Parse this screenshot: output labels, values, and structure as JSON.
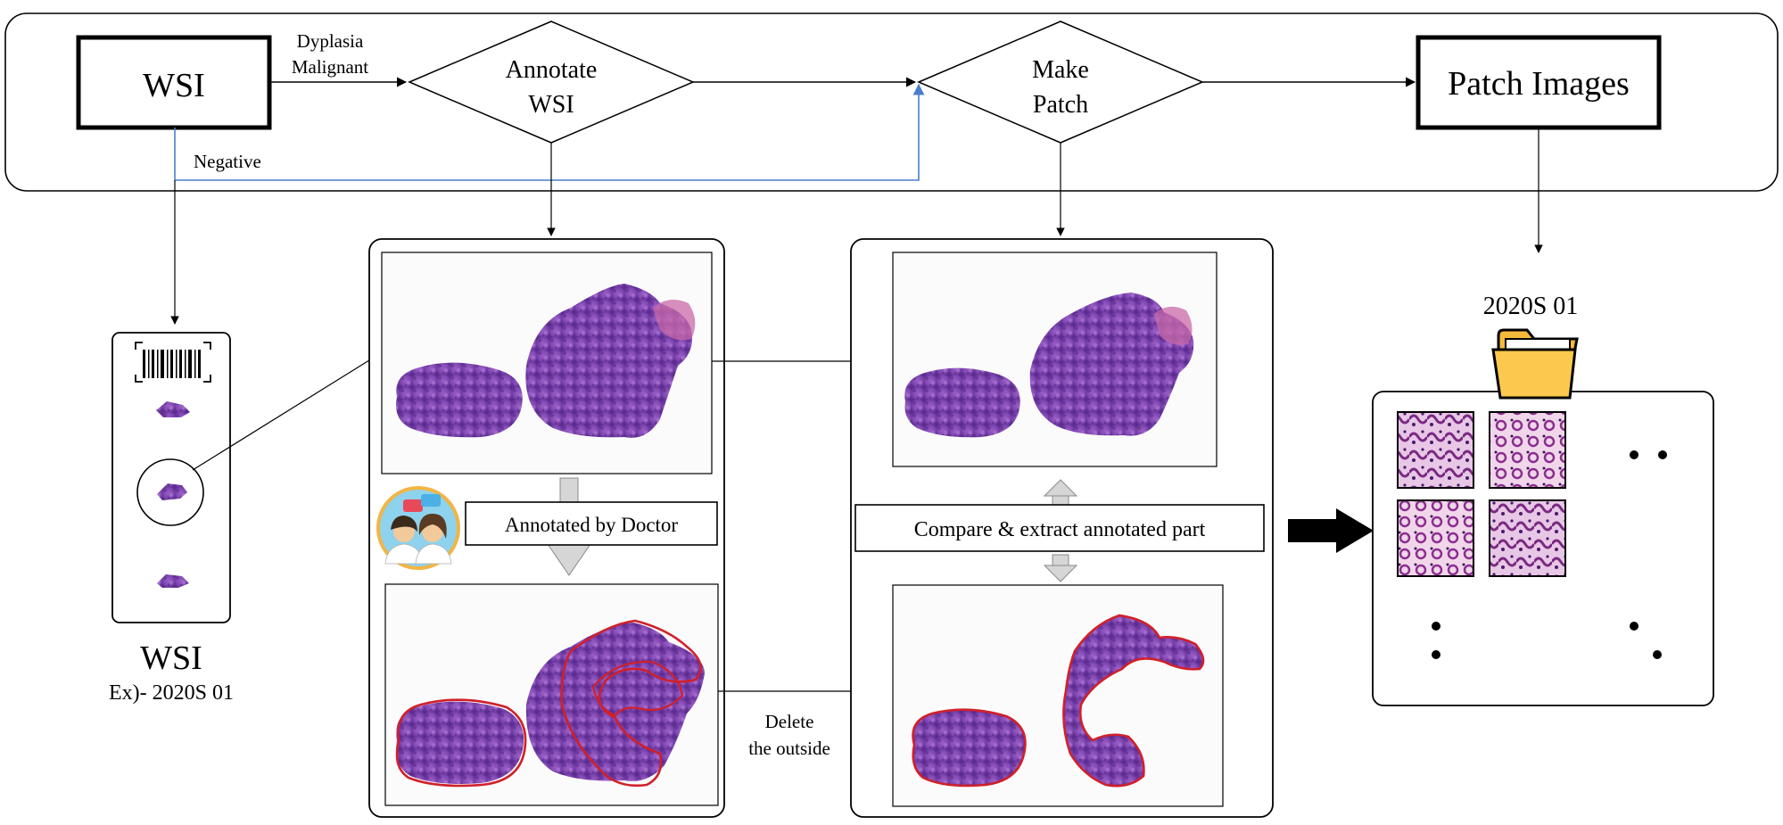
{
  "flow": {
    "wsi_box": "WSI",
    "label_dysplasia": "Dyplasia",
    "label_malignant": "Malignant",
    "label_negative": "Negative",
    "annotate_line1": "Annotate",
    "annotate_line2": "WSI",
    "make_patch_line1": "Make",
    "make_patch_line2": "Patch",
    "patch_images": "Patch Images"
  },
  "slide": {
    "title": "WSI",
    "example": "Ex)- 2020S 01"
  },
  "annotate_panel": {
    "step_label": "Annotated by Doctor"
  },
  "extract_panel": {
    "step_label": "Compare & extract annotated part",
    "delete_line1": "Delete",
    "delete_line2": "the outside"
  },
  "output": {
    "folder_name": "2020S 01"
  },
  "colors": {
    "tissue": "#8a4fb8",
    "tissue_dark": "#5a2a8a",
    "annotation": "#d0202a",
    "negative_arrow": "#4a7ec8",
    "folder": "#fcc94e"
  }
}
